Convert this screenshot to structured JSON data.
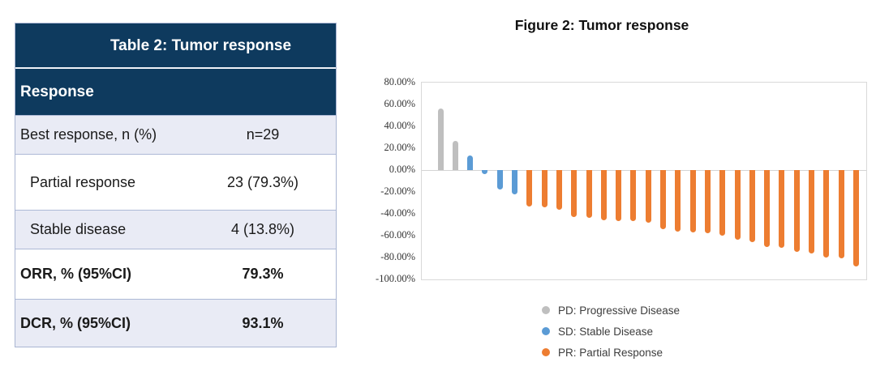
{
  "table": {
    "title": "Table 2: Tumor response",
    "section_header": "Response",
    "rows": [
      {
        "label": "Best response, n (%)",
        "value": "n=29",
        "bold": false,
        "indent": false,
        "shade": true
      },
      {
        "label": "Partial response",
        "value": "23 (79.3%)",
        "bold": false,
        "indent": true,
        "shade": false
      },
      {
        "label": "Stable disease",
        "value": "4 (13.8%)",
        "bold": false,
        "indent": true,
        "shade": true
      },
      {
        "label": "ORR, % (95%CI)",
        "value": "79.3%",
        "bold": true,
        "indent": false,
        "shade": false
      },
      {
        "label": "DCR, % (95%CI)",
        "value": "93.1%",
        "bold": true,
        "indent": false,
        "shade": true
      }
    ]
  },
  "chart_data": {
    "type": "bar",
    "title": "Figure 2: Tumor response",
    "xlabel": "",
    "ylabel": "",
    "ylim": [
      -100,
      80
    ],
    "grid": "zero-line-only",
    "legend_position": "bottom",
    "yticks": [
      {
        "value": 80,
        "label": "80.00%"
      },
      {
        "value": 60,
        "label": "60.00%"
      },
      {
        "value": 40,
        "label": "40.00%"
      },
      {
        "value": 20,
        "label": "20.00%"
      },
      {
        "value": 0,
        "label": "0.00%"
      },
      {
        "value": -20,
        "label": "-20.00%"
      },
      {
        "value": -40,
        "label": "-40.00%"
      },
      {
        "value": -60,
        "label": "-60.00%"
      },
      {
        "value": -80,
        "label": "-80.00%"
      },
      {
        "value": -100,
        "label": "-100.00%"
      }
    ],
    "groups": {
      "PD": "#bfbfbf",
      "SD": "#5b9bd5",
      "PR": "#ed7d31"
    },
    "legend": [
      {
        "group": "PD",
        "label": "PD: Progressive Disease",
        "color": "#bfbfbf"
      },
      {
        "group": "SD",
        "label": "SD: Stable Disease",
        "color": "#5b9bd5"
      },
      {
        "group": "PR",
        "label": "PR: Partial Response",
        "color": "#ed7d31"
      }
    ],
    "bars": [
      {
        "group": "PD",
        "value": 56
      },
      {
        "group": "PD",
        "value": 27
      },
      {
        "group": "SD",
        "value": 13
      },
      {
        "group": "SD",
        "value": -4
      },
      {
        "group": "SD",
        "value": -18
      },
      {
        "group": "SD",
        "value": -22
      },
      {
        "group": "PR",
        "value": -33
      },
      {
        "group": "PR",
        "value": -34
      },
      {
        "group": "PR",
        "value": -36
      },
      {
        "group": "PR",
        "value": -43
      },
      {
        "group": "PR",
        "value": -44
      },
      {
        "group": "PR",
        "value": -46
      },
      {
        "group": "PR",
        "value": -47
      },
      {
        "group": "PR",
        "value": -47
      },
      {
        "group": "PR",
        "value": -48
      },
      {
        "group": "PR",
        "value": -54
      },
      {
        "group": "PR",
        "value": -56
      },
      {
        "group": "PR",
        "value": -57
      },
      {
        "group": "PR",
        "value": -58
      },
      {
        "group": "PR",
        "value": -60
      },
      {
        "group": "PR",
        "value": -64
      },
      {
        "group": "PR",
        "value": -66
      },
      {
        "group": "PR",
        "value": -70
      },
      {
        "group": "PR",
        "value": -71
      },
      {
        "group": "PR",
        "value": -75
      },
      {
        "group": "PR",
        "value": -76
      },
      {
        "group": "PR",
        "value": -80
      },
      {
        "group": "PR",
        "value": -81
      },
      {
        "group": "PR",
        "value": -88
      }
    ]
  },
  "colors": {
    "header_navy": "#0e3a5e",
    "row_shade": "#e9ebf5",
    "table_border": "#adb9d6",
    "plot_border": "#d9d9d9"
  }
}
